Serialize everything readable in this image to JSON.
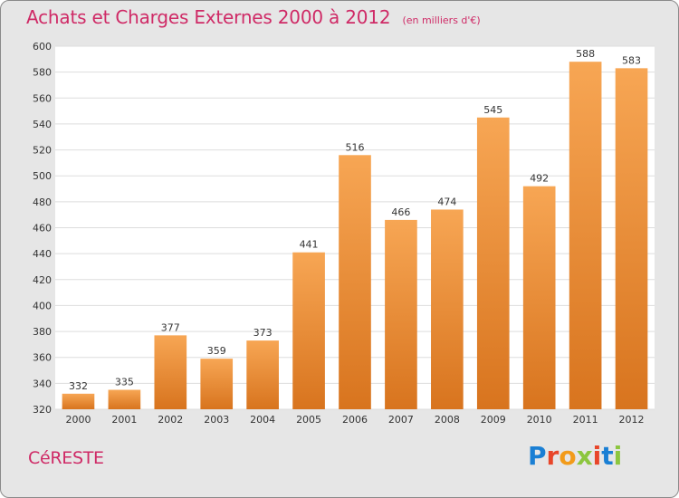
{
  "header": {
    "title": "Achats et Charges Externes 2000 à 2012",
    "unit": "(en milliers d'€)"
  },
  "footer": {
    "town": "CéRESTE",
    "logo": "Proxiti"
  },
  "colors": {
    "title": "#cf2a66",
    "bar_top": "#f7a654",
    "bar_bottom": "#d8741e",
    "background": "#e6e6e6",
    "plot_background": "#ffffff",
    "grid": "#dddddd",
    "logo_letters": [
      "#1a7fd4",
      "#e8462a",
      "#f29b1a",
      "#8cc63f",
      "#e8462a",
      "#1a7fd4",
      "#8cc63f"
    ]
  },
  "chart_data": {
    "type": "bar",
    "title": "Achats et Charges Externes 2000 à 2012",
    "subtitle": "(en milliers d'€)",
    "xlabel": "",
    "ylabel": "",
    "categories": [
      "2000",
      "2001",
      "2002",
      "2003",
      "2004",
      "2005",
      "2006",
      "2007",
      "2008",
      "2009",
      "2010",
      "2011",
      "2012"
    ],
    "values": [
      332,
      335,
      377,
      359,
      373,
      441,
      516,
      466,
      474,
      545,
      492,
      588,
      583
    ],
    "ylim": [
      320,
      600
    ],
    "yticks": [
      320,
      340,
      360,
      380,
      400,
      420,
      440,
      460,
      480,
      500,
      520,
      540,
      560,
      580,
      600
    ],
    "grid": true,
    "legend": "none"
  }
}
